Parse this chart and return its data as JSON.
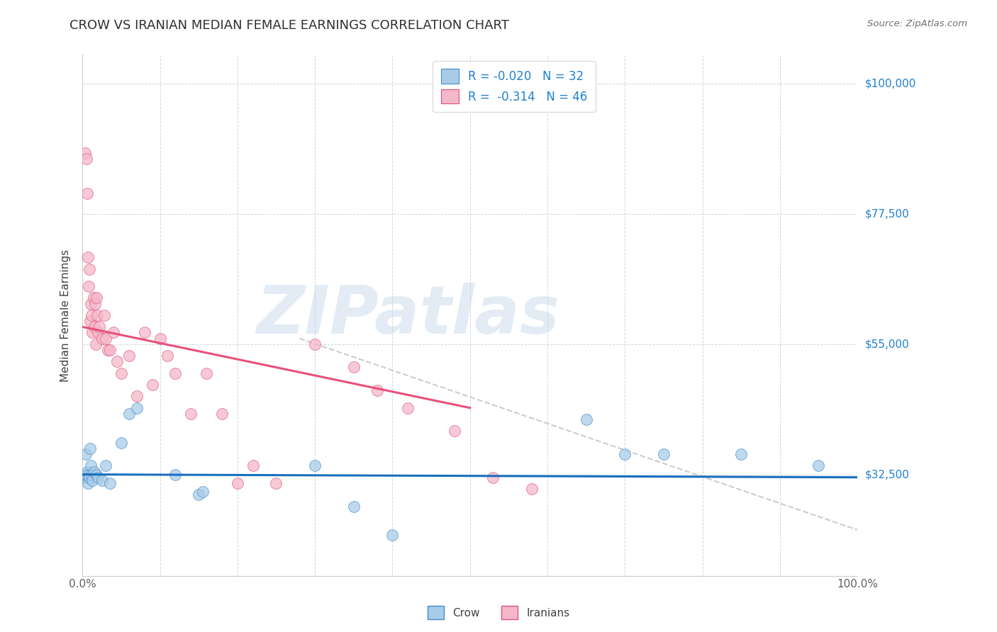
{
  "title": "CROW VS IRANIAN MEDIAN FEMALE EARNINGS CORRELATION CHART",
  "source": "Source: ZipAtlas.com",
  "ylabel": "Median Female Earnings",
  "x_range": [
    0.0,
    1.0
  ],
  "y_range": [
    15000,
    105000
  ],
  "crow_color": "#a8cce8",
  "iranians_color": "#f4b8c8",
  "crow_edge_color": "#4488cc",
  "iranians_edge_color": "#e05080",
  "crow_line_color": "#1a6fbd",
  "iranians_line_color": "#e8507a",
  "trend_dashed_color": "#cccccc",
  "legend_crow_r": "R = -0.020",
  "legend_crow_n": "N = 32",
  "legend_iranians_r": "R =  -0.314",
  "legend_iranians_n": "N = 46",
  "watermark_text": "ZIPatlas",
  "crow_scatter_x": [
    0.002,
    0.003,
    0.004,
    0.005,
    0.006,
    0.007,
    0.008,
    0.009,
    0.01,
    0.011,
    0.012,
    0.013,
    0.015,
    0.018,
    0.02,
    0.025,
    0.03,
    0.035,
    0.05,
    0.06,
    0.07,
    0.12,
    0.15,
    0.155,
    0.3,
    0.35,
    0.4,
    0.65,
    0.7,
    0.75,
    0.85,
    0.95
  ],
  "crow_scatter_y": [
    32000,
    32500,
    36000,
    32500,
    33000,
    31000,
    32500,
    32000,
    37000,
    34000,
    32500,
    31500,
    33000,
    32500,
    32000,
    31500,
    34000,
    31000,
    38000,
    43000,
    44000,
    32500,
    29000,
    29500,
    34000,
    27000,
    22000,
    42000,
    36000,
    36000,
    36000,
    34000
  ],
  "iranians_scatter_x": [
    0.003,
    0.005,
    0.006,
    0.007,
    0.008,
    0.009,
    0.01,
    0.011,
    0.012,
    0.013,
    0.014,
    0.015,
    0.016,
    0.017,
    0.018,
    0.019,
    0.02,
    0.022,
    0.025,
    0.028,
    0.03,
    0.033,
    0.035,
    0.04,
    0.045,
    0.05,
    0.06,
    0.07,
    0.08,
    0.09,
    0.1,
    0.11,
    0.12,
    0.14,
    0.16,
    0.18,
    0.2,
    0.22,
    0.25,
    0.3,
    0.35,
    0.38,
    0.42,
    0.48,
    0.53,
    0.58
  ],
  "iranians_scatter_y": [
    88000,
    87000,
    81000,
    70000,
    65000,
    68000,
    59000,
    62000,
    60000,
    57000,
    63000,
    58000,
    62000,
    55000,
    63000,
    60000,
    57000,
    58000,
    56000,
    60000,
    56000,
    54000,
    54000,
    57000,
    52000,
    50000,
    53000,
    46000,
    57000,
    48000,
    56000,
    53000,
    50000,
    43000,
    50000,
    43000,
    31000,
    34000,
    31000,
    55000,
    51000,
    47000,
    44000,
    40000,
    32000,
    30000
  ],
  "crow_trend_x": [
    0.0,
    1.0
  ],
  "crow_trend_y": [
    32500,
    32000
  ],
  "iranians_trend_x": [
    0.0,
    0.5
  ],
  "iranians_trend_y": [
    58000,
    44000
  ],
  "dashed_trend_x": [
    0.28,
    1.02
  ],
  "dashed_trend_y": [
    56000,
    22000
  ],
  "background_color": "#ffffff",
  "plot_bg_color": "#ffffff",
  "grid_color": "#c0cdd8",
  "tick_label_color": "#2080d0",
  "title_color": "#303030",
  "source_color": "#707070",
  "marker_size": 130,
  "marker_alpha": 0.75
}
